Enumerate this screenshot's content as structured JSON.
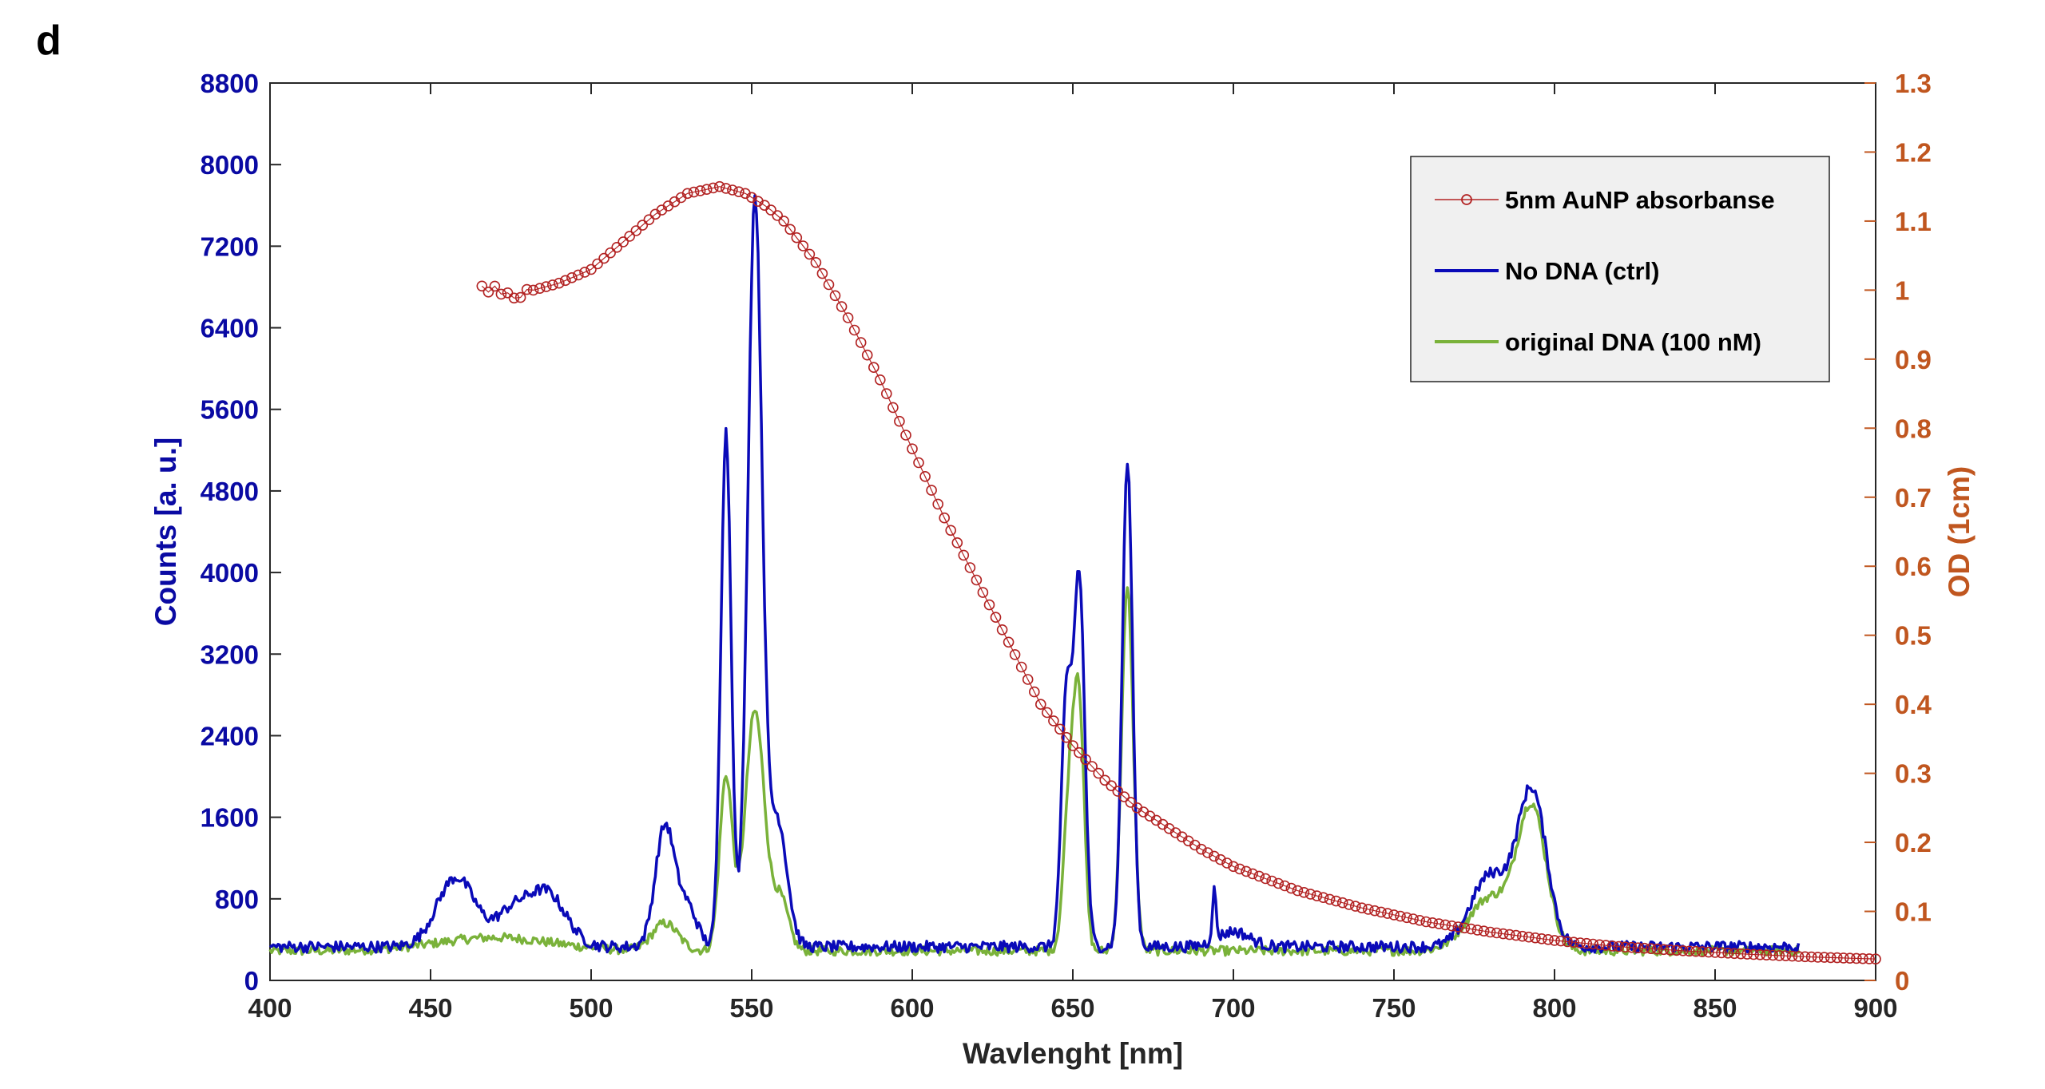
{
  "panel_label": "d",
  "chart_data": {
    "type": "line",
    "title": "",
    "xlabel": "Wavlenght [nm]",
    "ylabel_left": "Counts [a. u.]",
    "ylabel_right": "OD (1cm)",
    "xlim": [
      400,
      900
    ],
    "ylim_left": [
      0,
      8800
    ],
    "ylim_right": [
      0,
      1.3
    ],
    "x_ticks": [
      "400",
      "450",
      "500",
      "550",
      "600",
      "650",
      "700",
      "750",
      "800",
      "850",
      "900"
    ],
    "y_left_ticks": [
      "0",
      "800",
      "1600",
      "2400",
      "3200",
      "4000",
      "4800",
      "5600",
      "6400",
      "7200",
      "8000",
      "8800"
    ],
    "y_right_ticks": [
      "0",
      "0.1",
      "0.2",
      "0.3",
      "0.4",
      "0.5",
      "0.6",
      "0.7",
      "0.8",
      "0.9",
      "1",
      "1.1",
      "1.2",
      "1.3"
    ],
    "grid": false,
    "legend_position": "top-right",
    "series": [
      {
        "name": "5nm AuNP absorbanse",
        "axis": "right",
        "style": "markers",
        "color": "#b22222",
        "x_start": 466,
        "x_end": 900,
        "x_step": 2,
        "points": [
          [
            466,
            1.0
          ],
          [
            470,
            1.0
          ],
          [
            474,
            0.995
          ],
          [
            478,
            0.99
          ],
          [
            482,
            1.0
          ],
          [
            490,
            1.01
          ],
          [
            500,
            1.03
          ],
          [
            510,
            1.07
          ],
          [
            520,
            1.11
          ],
          [
            530,
            1.14
          ],
          [
            540,
            1.15
          ],
          [
            548,
            1.14
          ],
          [
            555,
            1.12
          ],
          [
            560,
            1.1
          ],
          [
            570,
            1.04
          ],
          [
            580,
            0.96
          ],
          [
            590,
            0.87
          ],
          [
            600,
            0.77
          ],
          [
            610,
            0.67
          ],
          [
            620,
            0.58
          ],
          [
            630,
            0.49
          ],
          [
            640,
            0.4
          ],
          [
            650,
            0.34
          ],
          [
            660,
            0.29
          ],
          [
            670,
            0.25
          ],
          [
            680,
            0.22
          ],
          [
            690,
            0.19
          ],
          [
            700,
            0.165
          ],
          [
            720,
            0.13
          ],
          [
            740,
            0.105
          ],
          [
            760,
            0.085
          ],
          [
            780,
            0.07
          ],
          [
            800,
            0.058
          ],
          [
            820,
            0.049
          ],
          [
            840,
            0.043
          ],
          [
            860,
            0.038
          ],
          [
            880,
            0.034
          ],
          [
            900,
            0.031
          ]
        ]
      },
      {
        "name": "No DNA (ctrl)",
        "axis": "left",
        "style": "line",
        "color": "#0a0ab8",
        "x_start": 400,
        "x_end": 876,
        "peaks": [
          {
            "center": 458,
            "height": 680,
            "width": 6
          },
          {
            "center": 475,
            "height": 300,
            "width": 5
          },
          {
            "center": 486,
            "height": 530,
            "width": 6
          },
          {
            "center": 523,
            "height": 1180,
            "width": 3
          },
          {
            "center": 530,
            "height": 380,
            "width": 3
          },
          {
            "center": 542,
            "height": 5050,
            "width": 1.6
          },
          {
            "center": 551,
            "height": 7300,
            "width": 2.2
          },
          {
            "center": 558,
            "height": 1250,
            "width": 3
          },
          {
            "center": 648,
            "height": 2400,
            "width": 1.6
          },
          {
            "center": 652,
            "height": 3600,
            "width": 1.7
          },
          {
            "center": 667,
            "height": 4750,
            "width": 1.6
          },
          {
            "center": 694,
            "height": 480,
            "width": 0.6
          },
          {
            "center": 700,
            "height": 150,
            "width": 5
          },
          {
            "center": 780,
            "height": 700,
            "width": 6
          },
          {
            "center": 793,
            "height": 1500,
            "width": 4.5
          }
        ],
        "baseline": 330
      },
      {
        "name": "original DNA (100 nM)",
        "axis": "left",
        "style": "line",
        "color": "#7ab23a",
        "x_start": 400,
        "x_end": 876,
        "peaks": [
          {
            "center": 470,
            "height": 130,
            "width": 18
          },
          {
            "center": 523,
            "height": 270,
            "width": 4
          },
          {
            "center": 542,
            "height": 1700,
            "width": 2
          },
          {
            "center": 551,
            "height": 2350,
            "width": 3
          },
          {
            "center": 559,
            "height": 500,
            "width": 2.5
          },
          {
            "center": 649,
            "height": 1550,
            "width": 1.8
          },
          {
            "center": 652,
            "height": 2250,
            "width": 1.6
          },
          {
            "center": 667,
            "height": 3550,
            "width": 1.8
          },
          {
            "center": 780,
            "height": 520,
            "width": 7
          },
          {
            "center": 793,
            "height": 1360,
            "width": 4.5
          }
        ],
        "baseline": 290
      }
    ]
  },
  "legend": {
    "entries": [
      {
        "label": "5nm AuNP absorbanse",
        "color": "#b22222",
        "marker": "circle"
      },
      {
        "label": "No DNA (ctrl)",
        "color": "#0a0ab8",
        "marker": "none"
      },
      {
        "label": "original DNA (100 nM)",
        "color": "#7ab23a",
        "marker": "none"
      }
    ]
  },
  "colors": {
    "left_axis": "#0a0aa3",
    "right_axis": "#c0561f",
    "axes": "#262626",
    "legend_bg": "#f0f0f0"
  }
}
